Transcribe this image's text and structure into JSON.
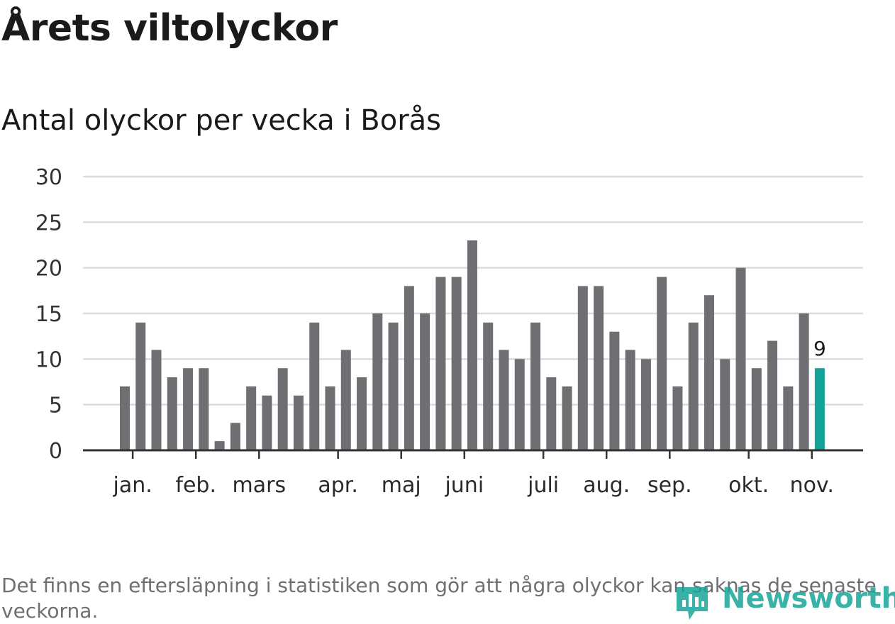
{
  "header": {
    "title": "Årets viltolyckor",
    "subtitle": "Antal olyckor per vecka i Borås"
  },
  "footnote": "Det finns en eftersläpning i statistiken som gör att några olyckor kan saknas de senaste veckorna.",
  "logo": {
    "text": "Newsworthy"
  },
  "colors": {
    "bar": "#6f6e73",
    "highlight": "#12a298",
    "grid": "#dcdcdc",
    "axis": "#333333"
  },
  "chart_data": {
    "type": "bar",
    "title": "Årets viltolyckor",
    "subtitle": "Antal olyckor per vecka i Borås",
    "ylim": [
      0,
      30
    ],
    "yticks": [
      0,
      5,
      10,
      15,
      20,
      25,
      30
    ],
    "grid": true,
    "values": [
      7,
      14,
      11,
      8,
      9,
      9,
      1,
      3,
      7,
      6,
      9,
      6,
      14,
      7,
      11,
      8,
      15,
      14,
      18,
      15,
      19,
      19,
      23,
      14,
      11,
      10,
      14,
      8,
      7,
      18,
      18,
      13,
      11,
      10,
      19,
      7,
      14,
      17,
      10,
      20,
      9,
      12,
      7,
      15,
      9
    ],
    "highlight_index": 44,
    "highlight_label": "9",
    "month_labels": [
      {
        "label": "jan.",
        "bar_index": 0.5
      },
      {
        "label": "feb.",
        "bar_index": 4.5
      },
      {
        "label": "mars",
        "bar_index": 8.5
      },
      {
        "label": "apr.",
        "bar_index": 13.5
      },
      {
        "label": "maj",
        "bar_index": 17.5
      },
      {
        "label": "juni",
        "bar_index": 21.5
      },
      {
        "label": "juli",
        "bar_index": 26.5
      },
      {
        "label": "aug.",
        "bar_index": 30.5
      },
      {
        "label": "sep.",
        "bar_index": 34.5
      },
      {
        "label": "okt.",
        "bar_index": 39.5
      },
      {
        "label": "nov.",
        "bar_index": 43.5
      }
    ]
  }
}
